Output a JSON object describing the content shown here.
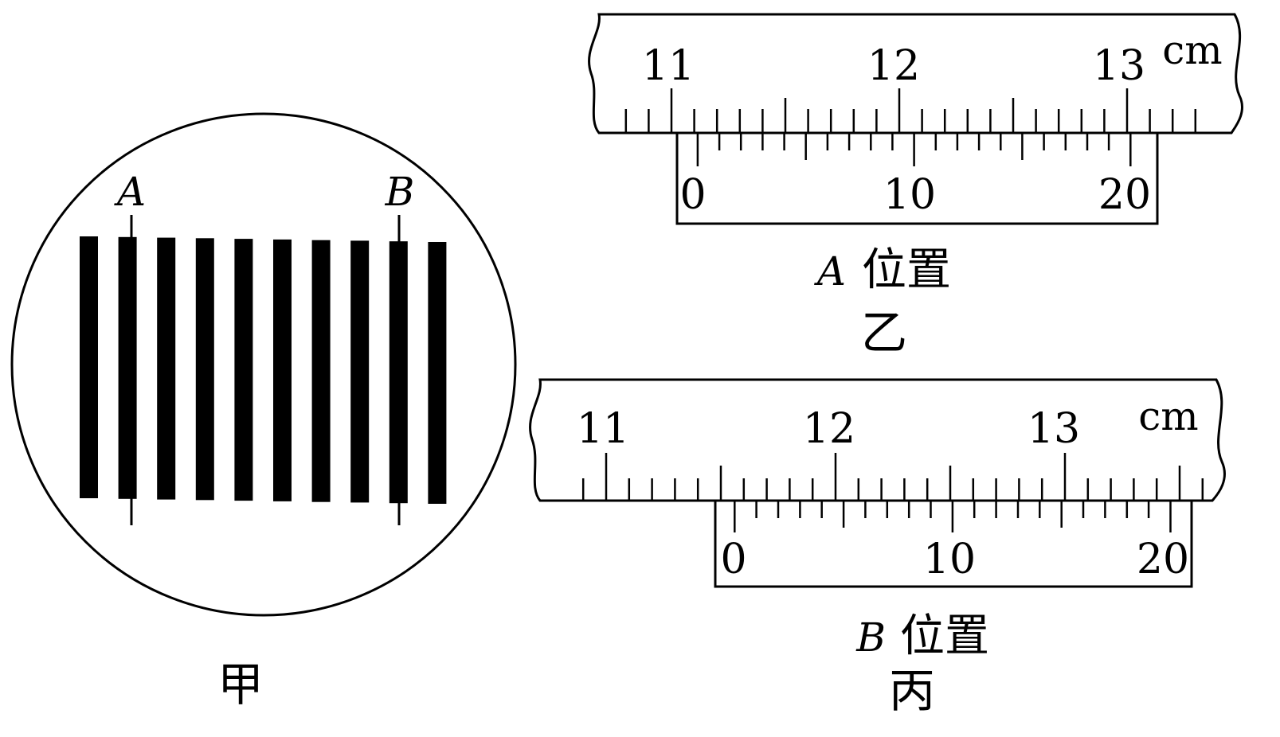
{
  "figure_jia": {
    "caption": "甲",
    "marker_a": "A",
    "marker_b": "B",
    "fringe_count": 10,
    "marker_a_on_fringe": 2,
    "marker_b_on_fringe": 9
  },
  "figure_yi": {
    "caption": "乙",
    "position_letter": "A",
    "position_word": "位置",
    "unit": "cm",
    "main_scale_labels": [
      "11",
      "12",
      "13"
    ],
    "vernier_labels": [
      "0",
      "10",
      "20"
    ],
    "main_scale_range_mm": [
      108,
      133
    ],
    "vernier_zero_mm": 111.15,
    "vernier_divisions": 20,
    "vernier_division_mm": 0.95
  },
  "figure_bing": {
    "caption": "丙",
    "position_letter": "B",
    "position_word": "位置",
    "unit": "cm",
    "main_scale_labels": [
      "11",
      "12",
      "13"
    ],
    "vernier_labels": [
      "0",
      "10",
      "20"
    ],
    "main_scale_range_mm": [
      109,
      136
    ],
    "vernier_zero_mm": 115.6,
    "vernier_divisions": 20,
    "vernier_division_mm": 0.95
  }
}
